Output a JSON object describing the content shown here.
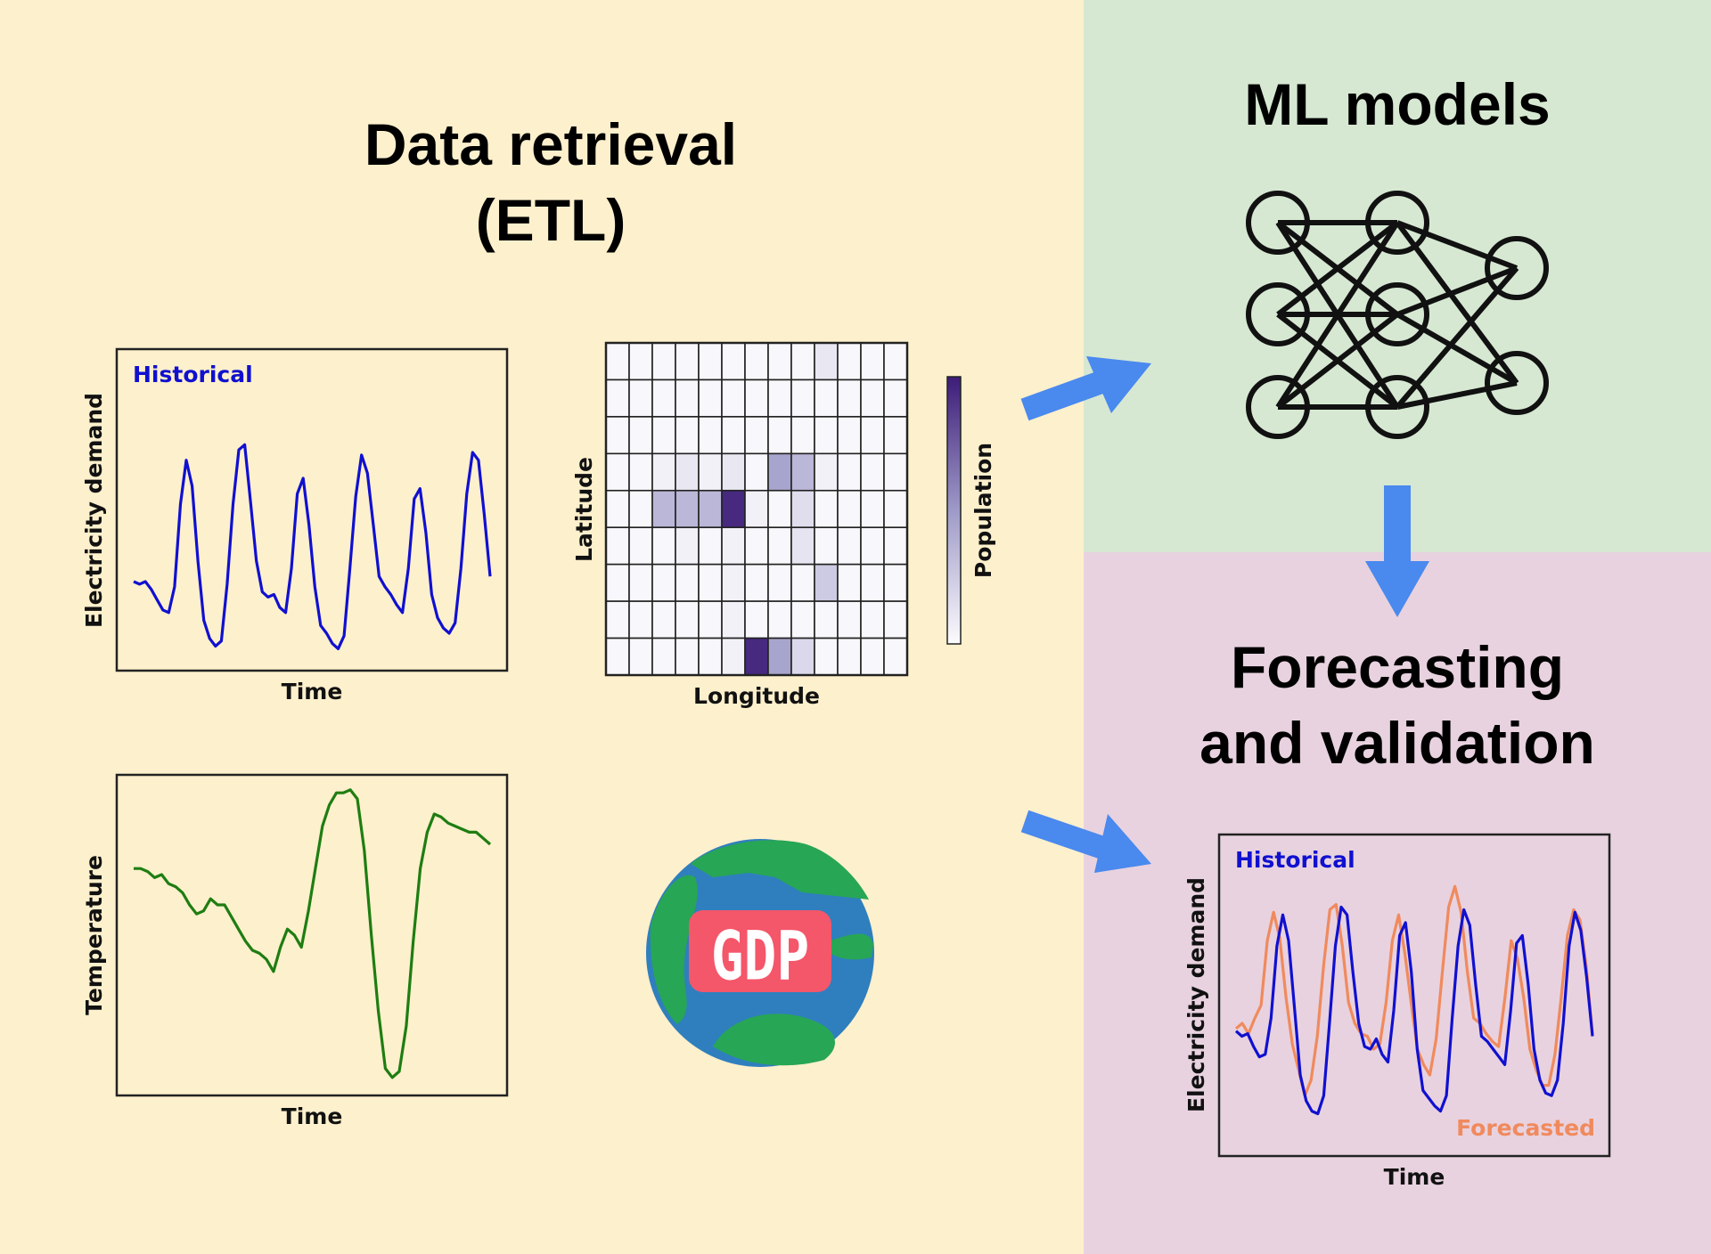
{
  "colors": {
    "etl_bg": "#fdf0cc",
    "ml_bg": "#d6e8d2",
    "forecast_bg": "#e8d2df",
    "arrow": "#4a89ee",
    "historical": "#1010d0",
    "forecasted": "#f08a5d",
    "temperature": "#1e7d12",
    "heatmap_max": "#3d1c78",
    "gdp_badge": "#f4566a",
    "globe_ocean": "#2f7fbe",
    "globe_land": "#27a655"
  },
  "sections": {
    "etl": {
      "title_line1": "Data retrieval",
      "title_line2": "(ETL)"
    },
    "ml": {
      "title": "ML models"
    },
    "forecast": {
      "title_line1": "Forecasting",
      "title_line2": "and validation"
    }
  },
  "gdp_icon": {
    "label": "GDP",
    "icon": "globe-icon"
  },
  "network": {
    "layers": [
      3,
      3,
      2
    ]
  },
  "chart_data": [
    {
      "id": "historical-demand",
      "type": "line",
      "xlabel": "Time",
      "ylabel": "Electricity demand",
      "legend": "Historical",
      "legend_position": "top-left",
      "ylim": [
        0,
        1
      ],
      "series": [
        {
          "name": "Historical",
          "values": [
            0.3,
            0.29,
            0.3,
            0.27,
            0.23,
            0.19,
            0.18,
            0.28,
            0.6,
            0.77,
            0.67,
            0.38,
            0.15,
            0.08,
            0.05,
            0.07,
            0.29,
            0.6,
            0.81,
            0.83,
            0.61,
            0.38,
            0.26,
            0.24,
            0.25,
            0.2,
            0.18,
            0.35,
            0.64,
            0.7,
            0.52,
            0.28,
            0.13,
            0.1,
            0.06,
            0.04,
            0.09,
            0.35,
            0.63,
            0.79,
            0.72,
            0.52,
            0.32,
            0.28,
            0.25,
            0.21,
            0.18,
            0.35,
            0.62,
            0.66,
            0.49,
            0.25,
            0.16,
            0.12,
            0.1,
            0.14,
            0.35,
            0.64,
            0.8,
            0.77,
            0.56,
            0.32
          ]
        }
      ]
    },
    {
      "id": "temperature",
      "type": "line",
      "xlabel": "Time",
      "ylabel": "Temperature",
      "ylim": [
        0,
        1
      ],
      "series": [
        {
          "name": "Temperature",
          "values": [
            0.72,
            0.72,
            0.71,
            0.69,
            0.7,
            0.67,
            0.66,
            0.64,
            0.6,
            0.57,
            0.58,
            0.62,
            0.6,
            0.6,
            0.56,
            0.52,
            0.48,
            0.45,
            0.44,
            0.42,
            0.38,
            0.46,
            0.52,
            0.5,
            0.46,
            0.58,
            0.72,
            0.86,
            0.93,
            0.97,
            0.97,
            0.98,
            0.95,
            0.78,
            0.5,
            0.25,
            0.06,
            0.03,
            0.05,
            0.2,
            0.48,
            0.72,
            0.84,
            0.9,
            0.89,
            0.87,
            0.86,
            0.85,
            0.84,
            0.84,
            0.82,
            0.8
          ]
        }
      ]
    },
    {
      "id": "population",
      "type": "heatmap",
      "xlabel": "Longitude",
      "ylabel": "Latitude",
      "colorbar_label": "Population",
      "rows": 9,
      "cols": 13,
      "vmin": 0,
      "vmax": 1,
      "cells": [
        [
          0.02,
          0.02,
          0.02,
          0.02,
          0.02,
          0.02,
          0.02,
          0.02,
          0.02,
          0.1,
          0.02,
          0.02,
          0.02
        ],
        [
          0.02,
          0.02,
          0.02,
          0.02,
          0.02,
          0.02,
          0.02,
          0.02,
          0.02,
          0.02,
          0.02,
          0.02,
          0.02
        ],
        [
          0.02,
          0.02,
          0.02,
          0.02,
          0.02,
          0.02,
          0.02,
          0.02,
          0.02,
          0.02,
          0.02,
          0.02,
          0.02
        ],
        [
          0.02,
          0.02,
          0.05,
          0.1,
          0.05,
          0.1,
          0.02,
          0.45,
          0.35,
          0.05,
          0.02,
          0.02,
          0.02
        ],
        [
          0.02,
          0.02,
          0.35,
          0.35,
          0.35,
          0.95,
          0.05,
          0.02,
          0.15,
          0.02,
          0.02,
          0.02,
          0.02
        ],
        [
          0.02,
          0.02,
          0.02,
          0.05,
          0.02,
          0.05,
          0.02,
          0.02,
          0.12,
          0.02,
          0.02,
          0.02,
          0.02
        ],
        [
          0.02,
          0.02,
          0.02,
          0.02,
          0.02,
          0.05,
          0.02,
          0.02,
          0.02,
          0.25,
          0.02,
          0.02,
          0.02
        ],
        [
          0.02,
          0.02,
          0.02,
          0.02,
          0.02,
          0.05,
          0.02,
          0.02,
          0.02,
          0.02,
          0.02,
          0.02,
          0.02
        ],
        [
          0.02,
          0.02,
          0.02,
          0.02,
          0.02,
          0.05,
          0.95,
          0.45,
          0.18,
          0.02,
          0.02,
          0.02,
          0.02
        ]
      ]
    },
    {
      "id": "forecast-demand",
      "type": "line",
      "xlabel": "Time",
      "ylabel": "Electricity demand",
      "legend": [
        "Historical",
        "Forecasted"
      ],
      "ylim": [
        0,
        1
      ],
      "series": [
        {
          "name": "Historical",
          "values": [
            0.37,
            0.35,
            0.36,
            0.31,
            0.27,
            0.28,
            0.42,
            0.7,
            0.82,
            0.72,
            0.46,
            0.2,
            0.1,
            0.06,
            0.05,
            0.12,
            0.4,
            0.7,
            0.85,
            0.82,
            0.6,
            0.4,
            0.31,
            0.3,
            0.34,
            0.28,
            0.25,
            0.45,
            0.74,
            0.79,
            0.6,
            0.3,
            0.14,
            0.11,
            0.08,
            0.06,
            0.12,
            0.42,
            0.7,
            0.84,
            0.78,
            0.55,
            0.35,
            0.33,
            0.3,
            0.27,
            0.24,
            0.45,
            0.71,
            0.74,
            0.55,
            0.3,
            0.18,
            0.13,
            0.12,
            0.18,
            0.4,
            0.7,
            0.83,
            0.76,
            0.58,
            0.35
          ]
        },
        {
          "name": "Forecasted",
          "values": [
            0.38,
            0.4,
            0.36,
            0.42,
            0.47,
            0.72,
            0.83,
            0.73,
            0.5,
            0.32,
            0.22,
            0.12,
            0.18,
            0.35,
            0.62,
            0.84,
            0.86,
            0.7,
            0.48,
            0.4,
            0.36,
            0.35,
            0.3,
            0.32,
            0.48,
            0.72,
            0.82,
            0.67,
            0.48,
            0.3,
            0.24,
            0.2,
            0.34,
            0.6,
            0.85,
            0.93,
            0.83,
            0.6,
            0.42,
            0.4,
            0.36,
            0.33,
            0.31,
            0.5,
            0.72,
            0.65,
            0.5,
            0.3,
            0.22,
            0.16,
            0.16,
            0.28,
            0.5,
            0.74,
            0.84,
            0.8,
            0.62,
            0.36
          ]
        }
      ]
    }
  ]
}
